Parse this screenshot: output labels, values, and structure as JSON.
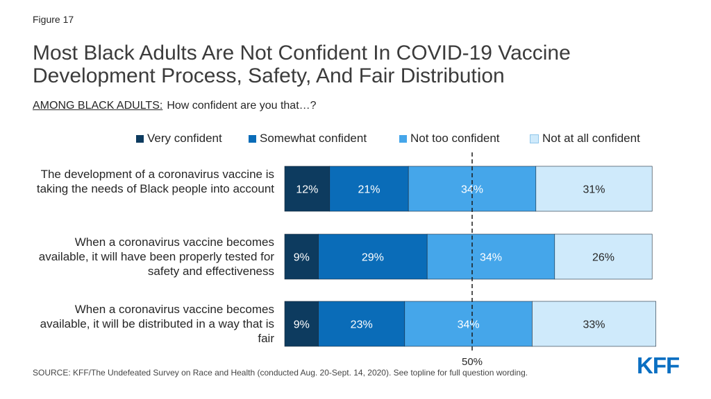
{
  "figure_label": "Figure 17",
  "title": "Most Black Adults Are Not Confident In COVID-19 Vaccine Development Process, Safety, And Fair Distribution",
  "subtitle_prefix": "AMONG BLACK ADULTS:",
  "subtitle_text": "How confident are you that…?",
  "footer": "SOURCE: KFF/The Undefeated Survey on Race and Health (conducted Aug. 20-Sept. 14, 2020). See topline for full question wording.",
  "logo": "KFF",
  "chart_data": {
    "type": "bar",
    "orientation": "horizontal",
    "stacked": true,
    "categories": [
      "The development of a coronavirus vaccine is taking the needs of Black people into account",
      "When a coronavirus vaccine becomes available, it will have been properly tested for safety and effectiveness",
      "When a coronavirus vaccine becomes available, it will be distributed in a way that is fair"
    ],
    "series": [
      {
        "name": "Very confident",
        "color": "#0d3b5f",
        "values": [
          12,
          9,
          9
        ],
        "labels": [
          "12%",
          "9%",
          "9%"
        ]
      },
      {
        "name": "Somewhat confident",
        "color": "#0a6cb8",
        "values": [
          21,
          29,
          23
        ],
        "labels": [
          "21%",
          "29%",
          "23%"
        ]
      },
      {
        "name": "Not too confident",
        "color": "#45a6ea",
        "values": [
          34,
          34,
          34
        ],
        "labels": [
          "34%",
          "34%",
          "34%"
        ]
      },
      {
        "name": "Not at all confident",
        "color": "#cfeafb",
        "values": [
          31,
          26,
          33
        ],
        "labels": [
          "31%",
          "26%",
          "33%"
        ]
      }
    ],
    "xlim": [
      0,
      100
    ],
    "reference_line": {
      "value": 50,
      "label": "50%"
    },
    "legend_position": "top"
  }
}
